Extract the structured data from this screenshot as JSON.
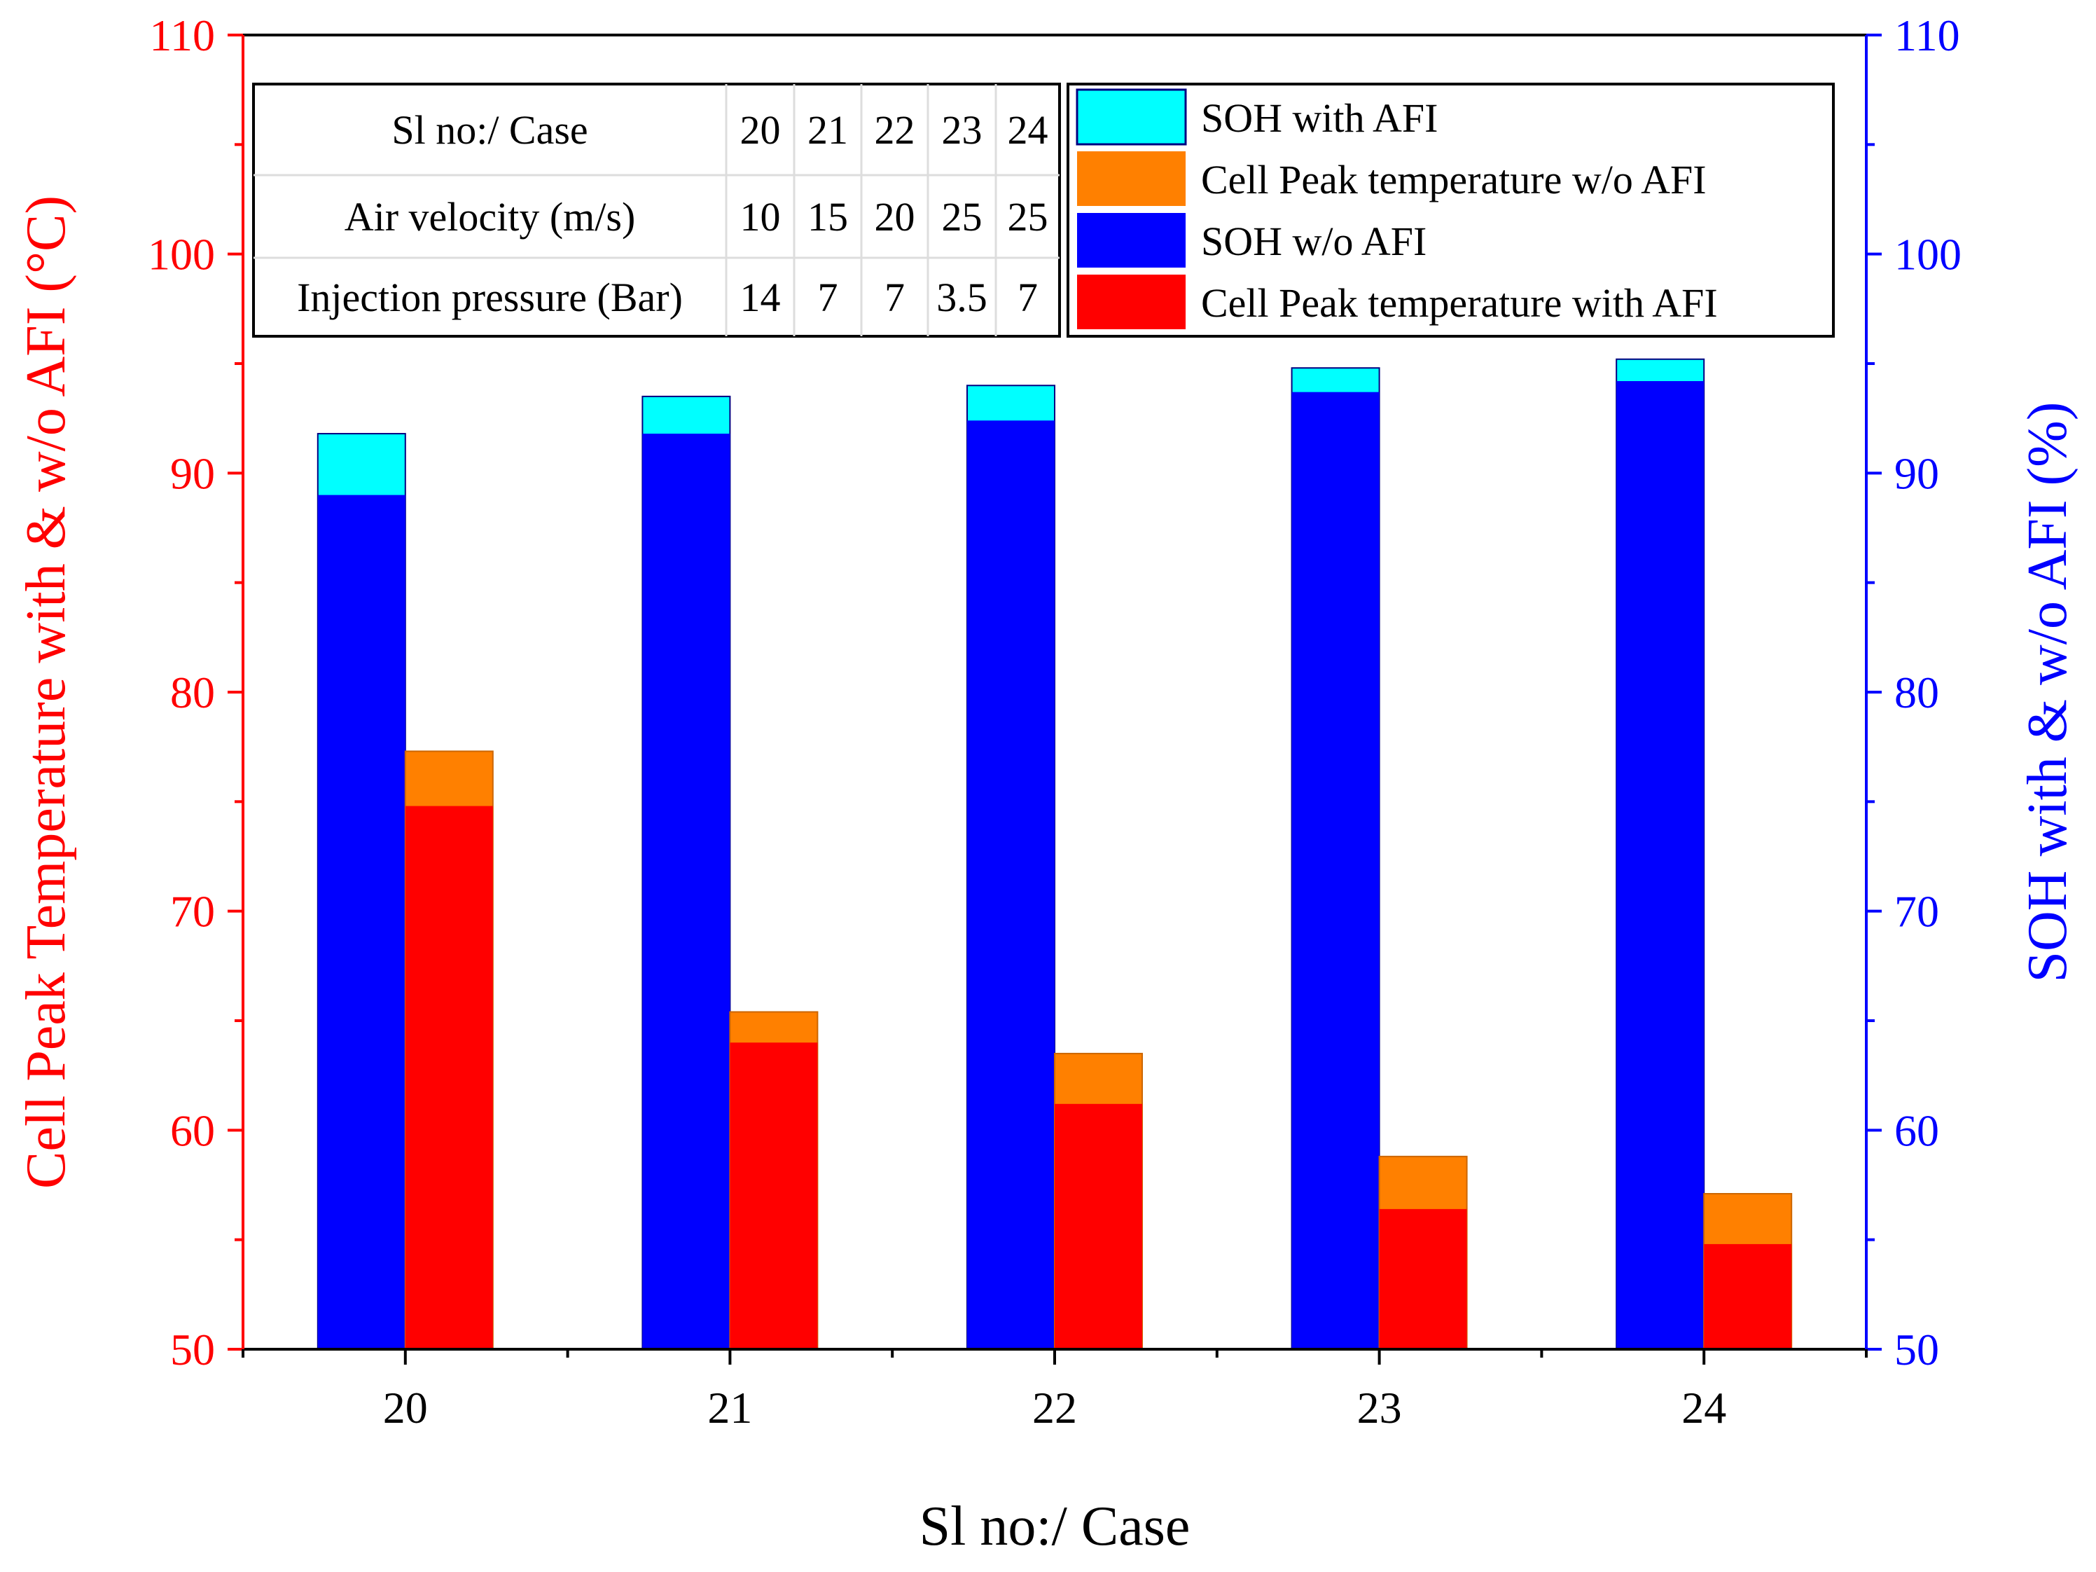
{
  "chart_data": {
    "type": "bar",
    "title": "",
    "xlabel": "Sl no:/ Case",
    "ylabel_left": "Cell Peak Temperature with & w/o AFI (°C)",
    "ylabel_right": "SOH  with & w/o AFI (%)",
    "ylim_left": [
      50,
      110
    ],
    "ylim_right": [
      50,
      110
    ],
    "yticks_left": [
      "50",
      "60",
      "70",
      "80",
      "90",
      "100",
      "110"
    ],
    "yticks_right": [
      "50",
      "60",
      "70",
      "80",
      "90",
      "100",
      "110"
    ],
    "categories": [
      "20",
      "21",
      "22",
      "23",
      "24"
    ],
    "series": [
      {
        "name": "SOH  with AFI",
        "axis": "right",
        "values": [
          91.8,
          93.5,
          94.0,
          94.8,
          95.2
        ],
        "color": "#00ffff"
      },
      {
        "name": "SOH  w/o AFI",
        "axis": "right",
        "values": [
          89.0,
          91.8,
          92.4,
          93.7,
          94.2
        ],
        "color": "#0000ff"
      },
      {
        "name": "Cell Peak temperature w/o AFI",
        "axis": "left",
        "values": [
          77.3,
          65.4,
          63.5,
          58.8,
          57.1
        ],
        "color": "#ff8000"
      },
      {
        "name": "Cell Peak temperature with AFI",
        "axis": "left",
        "values": [
          74.8,
          64.0,
          61.2,
          56.4,
          54.8
        ],
        "color": "#ff0000"
      }
    ],
    "legend": {
      "placement": "top-right",
      "entries": [
        "SOH  with AFI",
        "Cell Peak temperature w/o AFI",
        "SOH  w/o AFI",
        "Cell Peak temperature with AFI"
      ]
    },
    "table": {
      "placement": "top-left",
      "rows": [
        {
          "label": "Sl no:/ Case",
          "values": [
            "20",
            "21",
            "22",
            "23",
            "24"
          ]
        },
        {
          "label": "Air velocity (m/s)",
          "values": [
            "10",
            "15",
            "20",
            "25",
            "25"
          ]
        },
        {
          "label": "Injection pressure (Bar)",
          "values": [
            "14",
            "7",
            "7",
            "3.5",
            "7"
          ]
        }
      ]
    },
    "colors": {
      "left_axis": "#ff0000",
      "right_axis": "#0000ff",
      "x_axis": "#000000"
    }
  }
}
